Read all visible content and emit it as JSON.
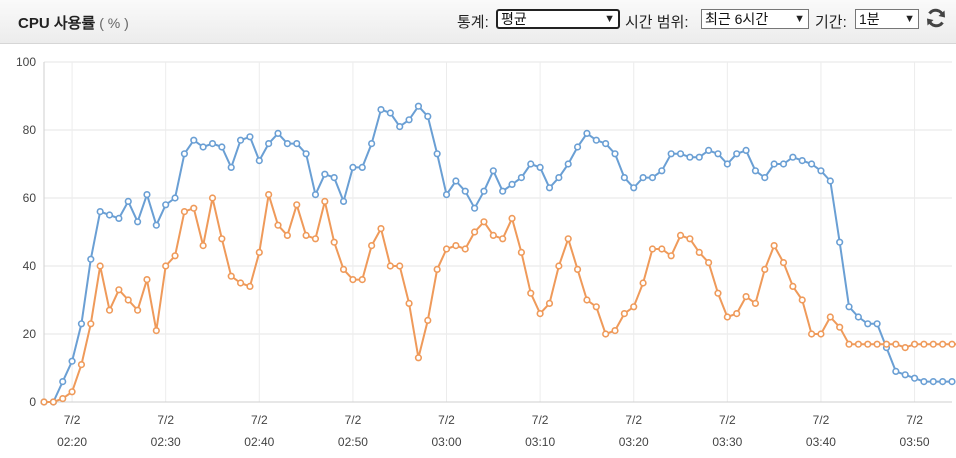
{
  "header": {
    "title": "CPU 사용률",
    "unit": "( % )",
    "stat_label": "통계:",
    "stat_value": "평균",
    "range_label": "시간 범위:",
    "range_value": "최근 6시간",
    "period_label": "기간:",
    "period_value": "1분",
    "refresh_icon": "refresh-icon"
  },
  "chart_data": {
    "type": "line",
    "ylim": [
      0,
      100
    ],
    "yticks": [
      0,
      20,
      40,
      60,
      80,
      100
    ],
    "grid": true,
    "x_range": [
      "02:17",
      "03:54"
    ],
    "x_ticks": [
      {
        "date": "7/2",
        "time": "02:20"
      },
      {
        "date": "7/2",
        "time": "02:30"
      },
      {
        "date": "7/2",
        "time": "02:40"
      },
      {
        "date": "7/2",
        "time": "02:50"
      },
      {
        "date": "7/2",
        "time": "03:00"
      },
      {
        "date": "7/2",
        "time": "03:10"
      },
      {
        "date": "7/2",
        "time": "03:20"
      },
      {
        "date": "7/2",
        "time": "03:30"
      },
      {
        "date": "7/2",
        "time": "03:40"
      },
      {
        "date": "7/2",
        "time": "03:50"
      }
    ],
    "x_start": "02:17",
    "series": [
      {
        "color": "#6a9fd4",
        "values": [
          0,
          0,
          6,
          12,
          23,
          42,
          56,
          55,
          54,
          59,
          53,
          61,
          52,
          58,
          60,
          73,
          77,
          75,
          76,
          75,
          69,
          77,
          78,
          71,
          76,
          79,
          76,
          76,
          73,
          61,
          67,
          66,
          59,
          69,
          69,
          76,
          86,
          85,
          81,
          83,
          87,
          84,
          73,
          61,
          65,
          62,
          57,
          62,
          68,
          62,
          64,
          66,
          70,
          69,
          63,
          66,
          70,
          75,
          79,
          77,
          76,
          73,
          66,
          63,
          66,
          66,
          68,
          73,
          73,
          72,
          72,
          74,
          73,
          70,
          73,
          74,
          68,
          66,
          70,
          70,
          72,
          71,
          70,
          68,
          65,
          47,
          28,
          25,
          23,
          23,
          16,
          9,
          8,
          7,
          6,
          6,
          6,
          6
        ]
      },
      {
        "color": "#ef9a5a",
        "values": [
          0,
          0,
          1,
          3,
          11,
          23,
          40,
          27,
          33,
          30,
          27,
          36,
          21,
          40,
          43,
          56,
          57,
          46,
          60,
          48,
          37,
          35,
          34,
          44,
          61,
          52,
          49,
          58,
          49,
          48,
          59,
          47,
          39,
          36,
          36,
          46,
          51,
          40,
          40,
          29,
          13,
          24,
          39,
          45,
          46,
          45,
          50,
          53,
          49,
          48,
          54,
          44,
          32,
          26,
          29,
          40,
          48,
          39,
          30,
          28,
          20,
          21,
          26,
          28,
          35,
          45,
          45,
          43,
          49,
          48,
          44,
          41,
          32,
          25,
          26,
          31,
          29,
          39,
          46,
          41,
          34,
          30,
          20,
          20,
          25,
          22,
          17,
          17,
          17,
          17,
          17,
          17,
          16,
          17,
          17,
          17,
          17,
          17,
          17
        ]
      }
    ]
  }
}
